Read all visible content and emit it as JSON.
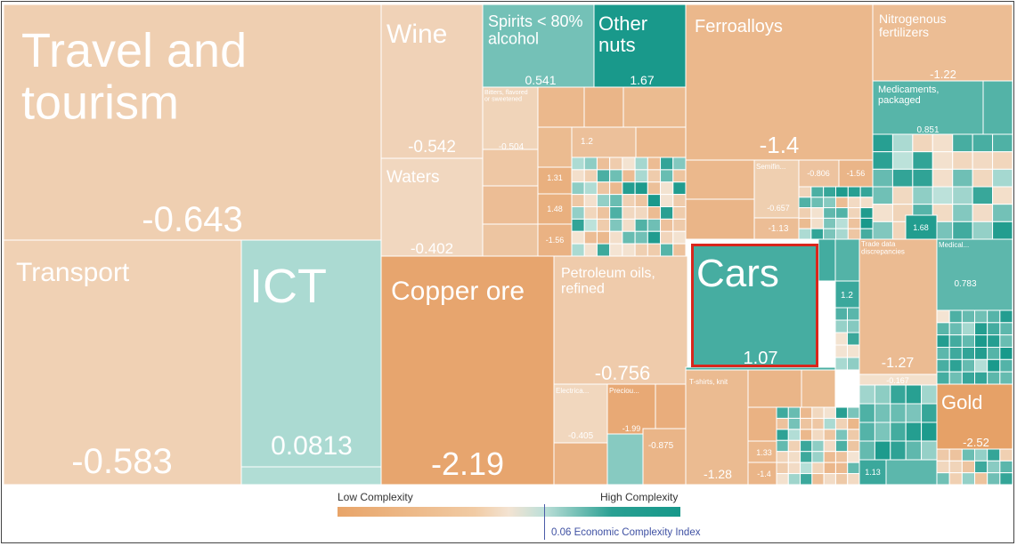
{
  "chart_data": {
    "type": "treemap",
    "metric": "Economic Complexity Index",
    "tiles": [
      {
        "label": "Travel and tourism",
        "value": "-0.643"
      },
      {
        "label": "Transport",
        "value": "-0.583"
      },
      {
        "label": "ICT",
        "value": "0.0813"
      },
      {
        "label": "Wine",
        "value": "-0.542"
      },
      {
        "label": "Waters",
        "value": "-0.402"
      },
      {
        "label": "Spirits < 80% alcohol",
        "value": "0.541"
      },
      {
        "label": "Other nuts",
        "value": "1.67"
      },
      {
        "label": "Bitters, flavored or sweetened",
        "value": "-0.504"
      },
      {
        "label": "Copper ore",
        "value": "-2.19"
      },
      {
        "label": "Petroleum oils, refined",
        "value": "-0.756"
      },
      {
        "label": "Electrica...",
        "value": "-0.405"
      },
      {
        "label": "Preciou...",
        "value": "-1.99"
      },
      {
        "label": "Ferroalloys",
        "value": "-1.4"
      },
      {
        "label": "Semifin...",
        "value": "-0.657"
      },
      {
        "label": "Nitrogenous fertilizers",
        "value": "-1.22"
      },
      {
        "label": "Medicaments, packaged",
        "value": "0.851"
      },
      {
        "label": "Cars",
        "value": "1.07"
      },
      {
        "label": "T-shirts, knit",
        "value": "-1.28"
      },
      {
        "label": "Trade data discrepancies",
        "value": "-1.27"
      },
      {
        "label": "Medical...",
        "value": "0.783"
      },
      {
        "label": "Gold",
        "value": "-2.52"
      }
    ],
    "small_values": [
      "1.2",
      "1.31",
      "1.48",
      "-1.56",
      "-0.806",
      "-1.56",
      "-1.13",
      "1.2",
      "-0.875",
      "1.33",
      "-1.4",
      "1.13",
      "1.68",
      "-0.167"
    ],
    "highlighted": "Cars",
    "colors": {
      "low": "#e8a468",
      "mid": "#f3e3d2",
      "high": "#17988a",
      "highlight_border": "#d9261c"
    }
  },
  "legend": {
    "low_label": "Low Complexity",
    "high_label": "High Complexity",
    "eci_label": "0.06 Economic Complexity Index"
  }
}
